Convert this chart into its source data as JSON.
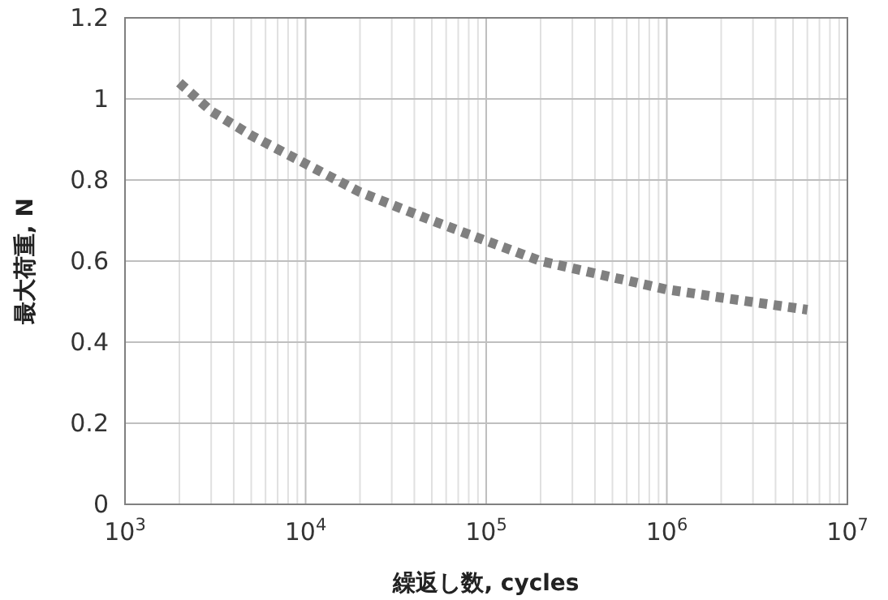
{
  "chart_data": {
    "type": "line",
    "xlabel": "繰返し数, cycles",
    "ylabel": "最大荷重, N",
    "log": "x",
    "grid": true,
    "line_style": "dotted",
    "xlim": [
      1000,
      10000000
    ],
    "xticks": [
      {
        "value": 1000,
        "label": "10$^{3}$"
      },
      {
        "value": 10000,
        "label": "10$^{4}$"
      },
      {
        "value": 100000,
        "label": "10$^{5}$"
      },
      {
        "value": 1000000,
        "label": "10$^{6}$"
      },
      {
        "value": 10000000,
        "label": "10$^{7}$"
      }
    ],
    "ylim": [
      0,
      1.2
    ],
    "yticks": [
      0,
      0.2,
      0.4,
      0.6,
      0.8,
      1,
      1.2
    ],
    "x": [
      2000,
      3000,
      5000,
      10000,
      20000,
      50000,
      100000,
      200000,
      500000,
      1000000,
      2000000,
      6000000
    ],
    "series": [
      {
        "color": "#808080",
        "values": [
          1.04,
          0.97,
          0.91,
          0.84,
          0.77,
          0.7,
          0.65,
          0.6,
          0.56,
          0.53,
          0.51,
          0.48
        ]
      }
    ]
  }
}
